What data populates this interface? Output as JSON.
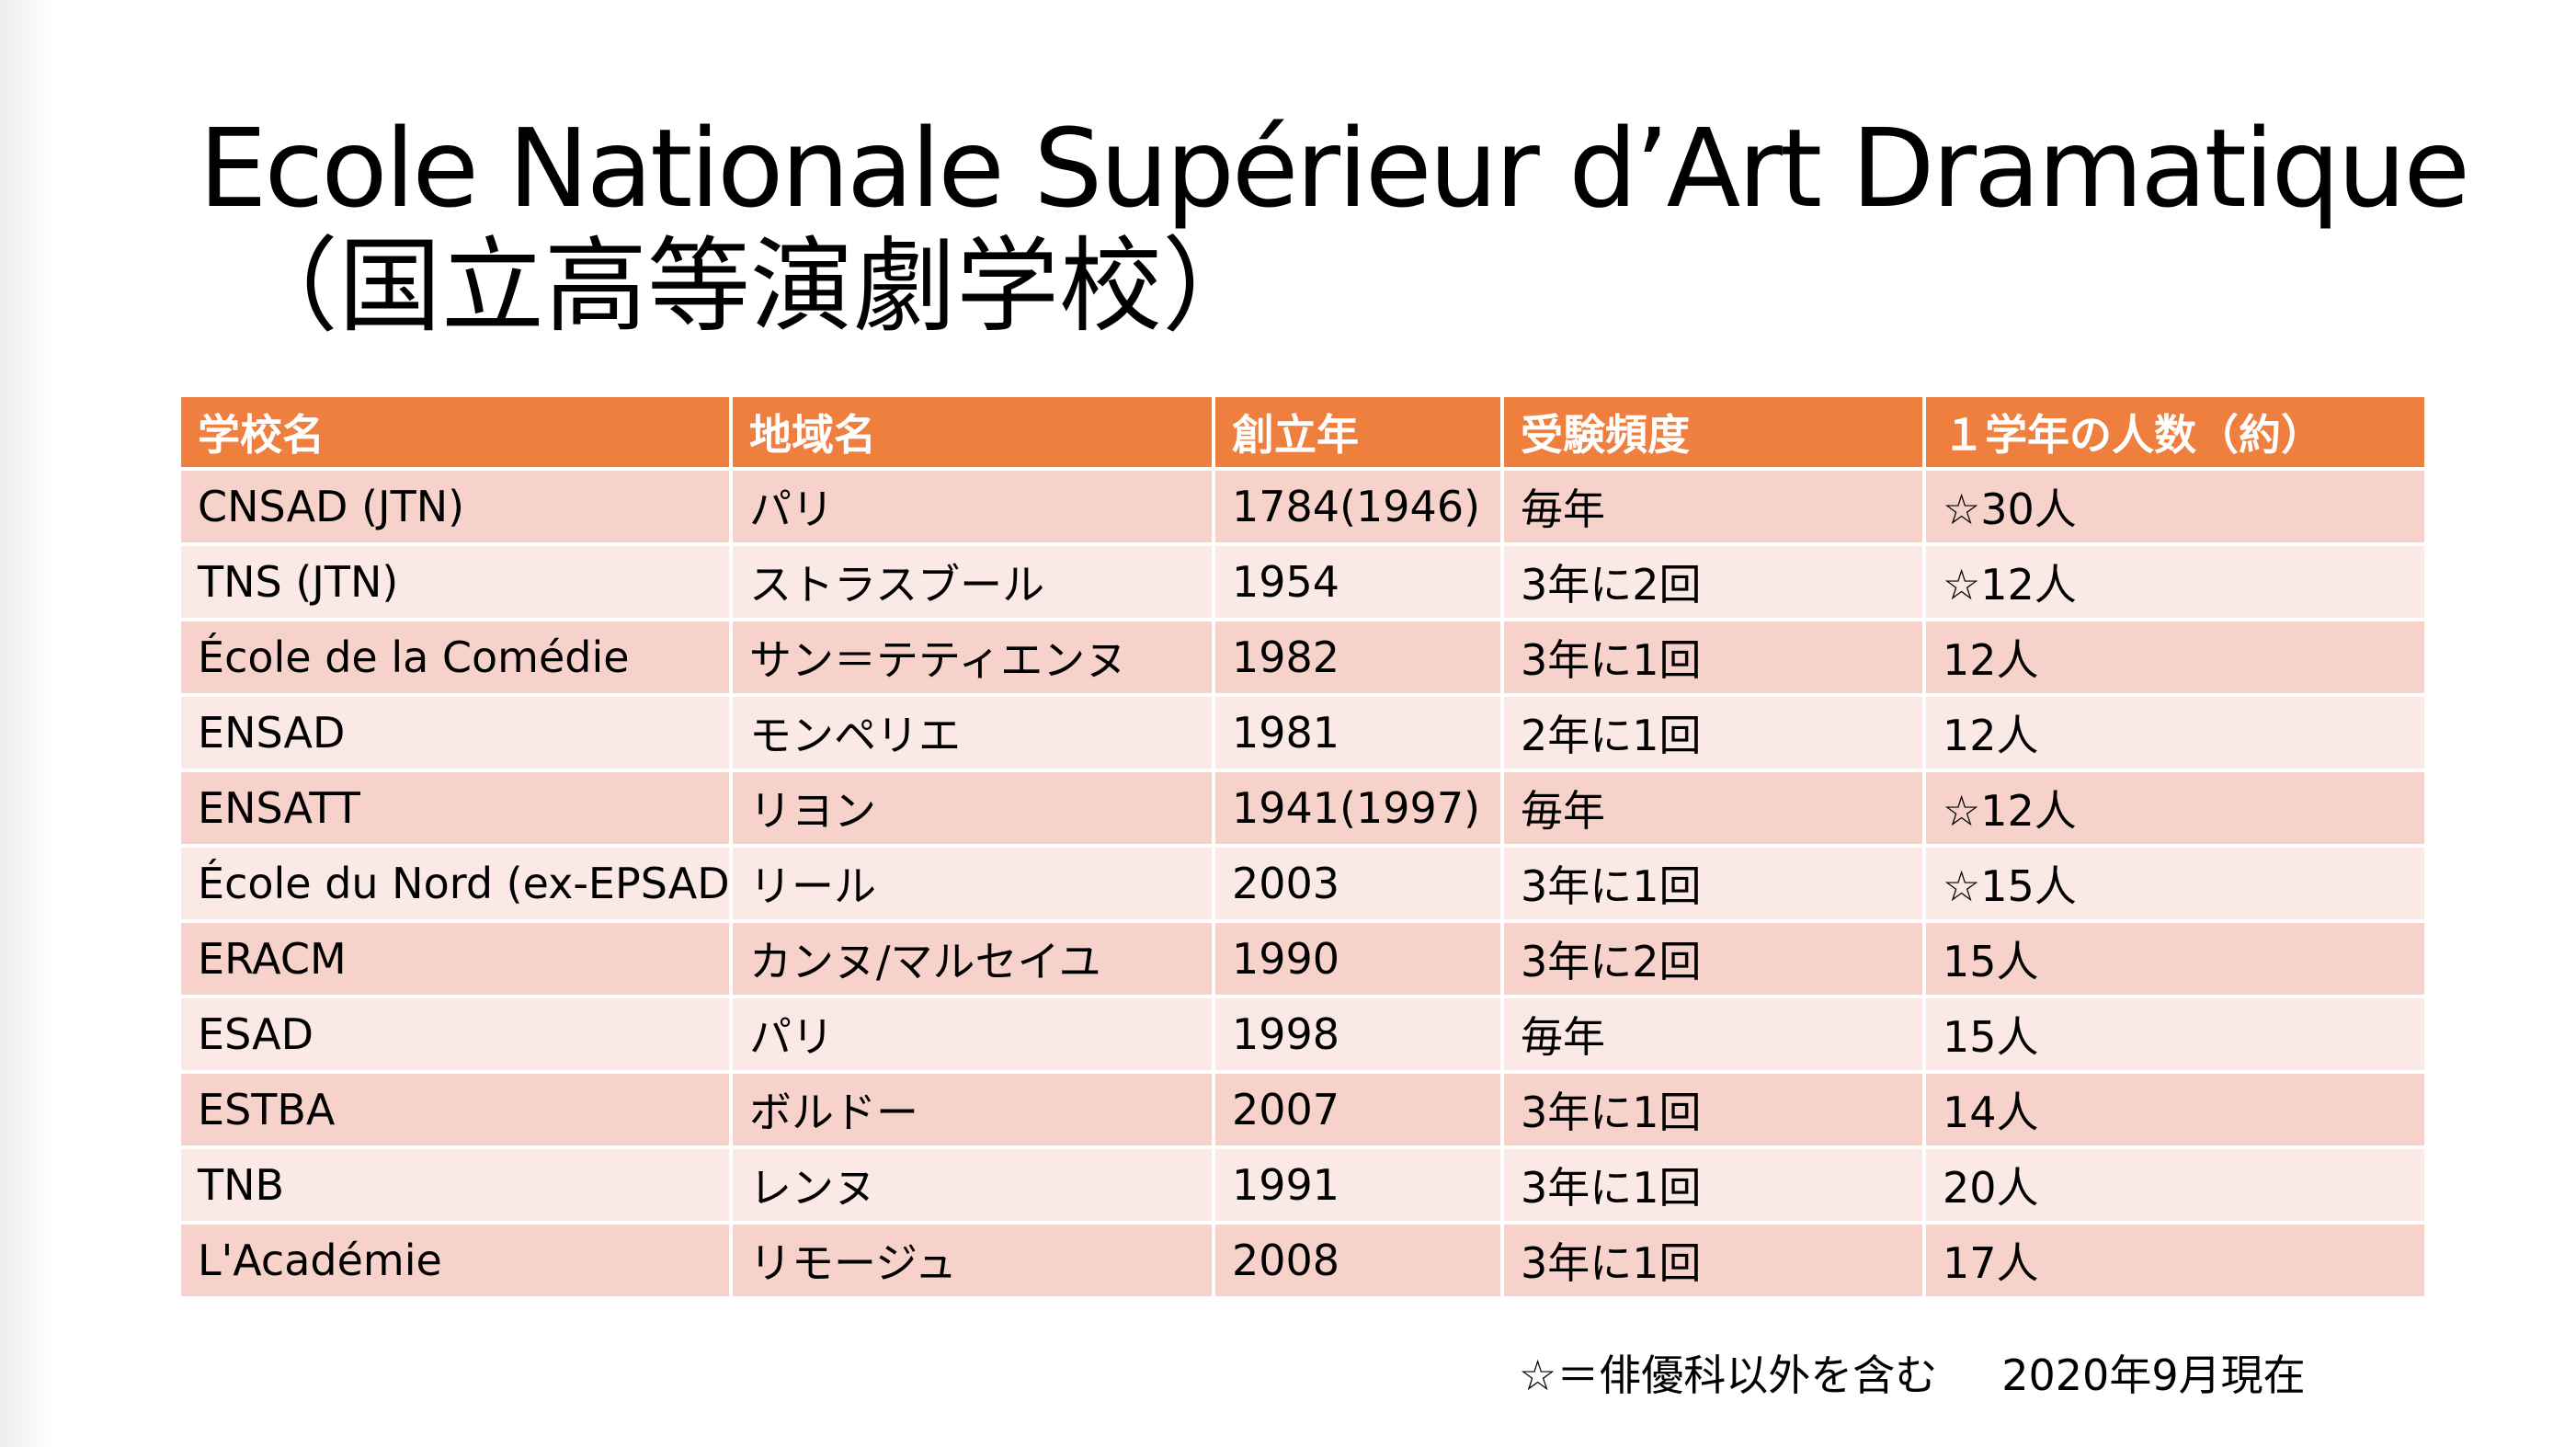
{
  "title": {
    "line1": "Ecole Nationale Supérieur d’Art Dramatique",
    "line2": "（国立高等演劇学校）"
  },
  "table": {
    "headers": [
      "学校名",
      "地域名",
      "創立年",
      "受験頻度",
      "１学年の人数（約）"
    ],
    "rows": [
      [
        "CNSAD  (JTN)",
        "パリ",
        "1784(1946)",
        "毎年",
        "☆30人"
      ],
      [
        "TNS  (JTN)",
        "ストラスブール",
        "1954",
        "3年に2回",
        "☆12人"
      ],
      [
        "École de la Comédie",
        "サン＝テティエンヌ",
        "1982",
        "3年に1回",
        "12人"
      ],
      [
        "ENSAD",
        "モンペリエ",
        "1981",
        "2年に1回",
        "12人"
      ],
      [
        "ENSATT",
        "リヨン",
        "1941(1997)",
        "毎年",
        "☆12人"
      ],
      [
        "École du Nord (ex-EPSAD)",
        "リール",
        "2003",
        "3年に1回",
        "☆15人"
      ],
      [
        "ERACM",
        "カンヌ/マルセイユ",
        "1990",
        "3年に2回",
        "15人"
      ],
      [
        "ESAD",
        "パリ",
        "1998",
        "毎年",
        "15人"
      ],
      [
        "ESTBA",
        "ボルドー",
        "2007",
        "3年に1回",
        "14人"
      ],
      [
        "TNB",
        "レンヌ",
        "1991",
        "3年に1回",
        "20人"
      ],
      [
        "L'Académie",
        "リモージュ",
        "2008",
        "3年に1回",
        "17人"
      ]
    ]
  },
  "footnote": {
    "legend": "☆＝俳優科以外を含む",
    "date": "2020年9月現在"
  },
  "colors": {
    "header_bg": "#ef7f3f",
    "row_odd_bg": "#f6d2ca",
    "row_even_bg": "#fbe9e5"
  }
}
